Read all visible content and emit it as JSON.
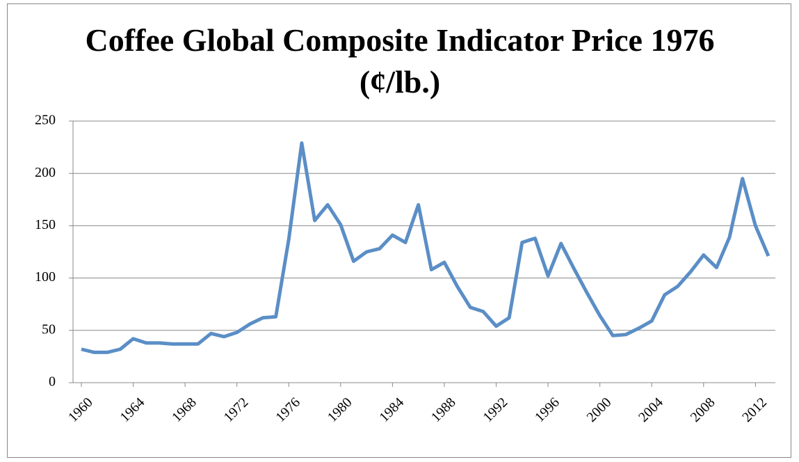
{
  "chart_data": {
    "type": "line",
    "title": "Coffee Global Composite Indicator Price 1976 (¢/lb.)",
    "x": [
      1960,
      1961,
      1962,
      1963,
      1964,
      1965,
      1966,
      1967,
      1968,
      1969,
      1970,
      1971,
      1972,
      1973,
      1974,
      1975,
      1976,
      1977,
      1978,
      1979,
      1980,
      1981,
      1982,
      1983,
      1984,
      1985,
      1986,
      1987,
      1988,
      1989,
      1990,
      1991,
      1992,
      1993,
      1994,
      1995,
      1996,
      1997,
      1998,
      1999,
      2000,
      2001,
      2002,
      2003,
      2004,
      2005,
      2006,
      2007,
      2008,
      2009,
      2010,
      2011,
      2012,
      2013
    ],
    "series": [
      {
        "color": "#5b8ec6",
        "values": [
          32,
          29,
          29,
          32,
          42,
          38,
          38,
          37,
          37,
          37,
          47,
          44,
          48,
          56,
          62,
          63,
          137,
          229,
          155,
          170,
          151,
          116,
          125,
          128,
          141,
          134,
          170,
          108,
          115,
          92,
          72,
          68,
          54,
          62,
          134,
          138,
          102,
          133,
          109,
          86,
          64,
          45,
          46,
          52,
          59,
          84,
          92,
          106,
          122,
          110,
          139,
          195,
          150,
          121
        ]
      }
    ],
    "xlim": [
      1960,
      2013
    ],
    "xticks": [
      1960,
      1964,
      1968,
      1972,
      1976,
      1980,
      1984,
      1988,
      1992,
      1996,
      2000,
      2004,
      2008,
      2012
    ],
    "ylim": [
      0,
      250
    ],
    "yticks": [
      0,
      50,
      100,
      150,
      200,
      250
    ],
    "grid": true
  }
}
